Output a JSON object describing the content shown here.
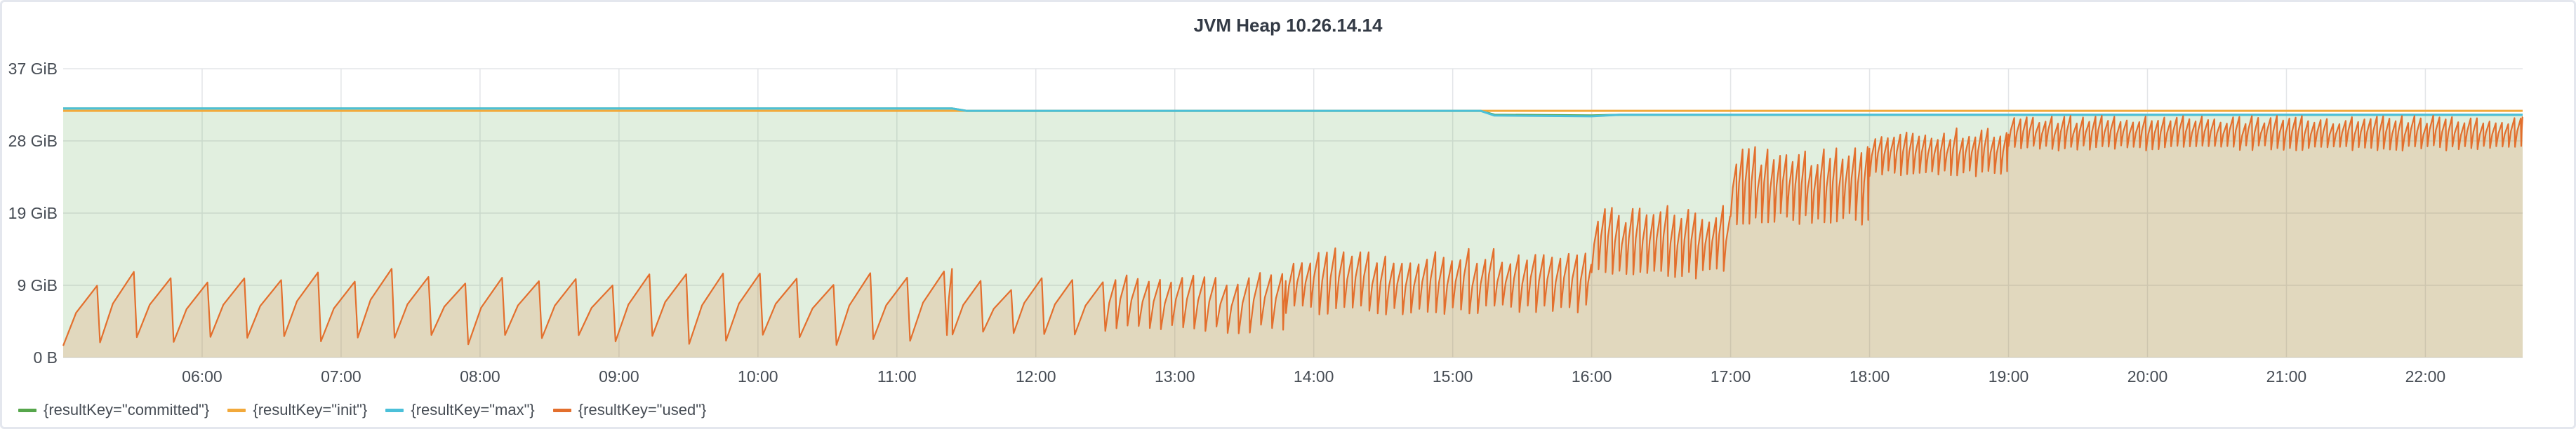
{
  "panel": {
    "title": "JVM Heap 10.26.14.14"
  },
  "chart_data": {
    "type": "line",
    "title": "JVM Heap 10.26.14.14",
    "xlabel": "",
    "ylabel": "",
    "y_unit": "GiB",
    "y_ticks": [
      "0 B",
      "9 GiB",
      "19 GiB",
      "28 GiB",
      "37 GiB"
    ],
    "y_tick_values": [
      0,
      9.25,
      18.5,
      27.75,
      37
    ],
    "ylim": [
      0,
      37
    ],
    "x_ticks": [
      "06:00",
      "07:00",
      "08:00",
      "09:00",
      "10:00",
      "11:00",
      "12:00",
      "13:00",
      "14:00",
      "15:00",
      "16:00",
      "17:00",
      "18:00",
      "19:00",
      "20:00",
      "21:00",
      "22:00"
    ],
    "x_tick_hours": [
      6,
      7,
      8,
      9,
      10,
      11,
      12,
      13,
      14,
      15,
      16,
      17,
      18,
      19,
      20,
      21,
      22
    ],
    "xlim_hours": [
      5.0,
      22.7
    ],
    "grid": true,
    "legend_position": "bottom-left",
    "series": [
      {
        "name": "{resultKey=\"committed\"}",
        "color": "#56a64b",
        "fill": true,
        "points": [
          [
            5.0,
            31.9
          ],
          [
            11.4,
            31.9
          ],
          [
            11.5,
            31.6
          ],
          [
            15.2,
            31.6
          ],
          [
            15.3,
            31.1
          ],
          [
            16.0,
            31.0
          ],
          [
            16.2,
            31.1
          ],
          [
            22.7,
            31.1
          ]
        ]
      },
      {
        "name": "{resultKey=\"init\"}",
        "color": "#f2a93b",
        "fill": false,
        "points": [
          [
            5.0,
            31.6
          ],
          [
            22.7,
            31.6
          ]
        ]
      },
      {
        "name": "{resultKey=\"max\"}",
        "color": "#4bc0d9",
        "fill": false,
        "points": [
          [
            5.0,
            31.9
          ],
          [
            11.4,
            31.9
          ],
          [
            11.5,
            31.6
          ],
          [
            15.2,
            31.6
          ],
          [
            15.3,
            31.0
          ],
          [
            16.0,
            30.9
          ],
          [
            16.2,
            31.1
          ],
          [
            22.7,
            31.1
          ]
        ]
      },
      {
        "name": "{resultKey=\"used\"}",
        "color": "#e36f2d",
        "fill": true,
        "sawtooth": [
          {
            "from": 5.0,
            "to": 11.4,
            "period": 0.265,
            "low": 1.5,
            "high": 11.5
          },
          {
            "from": 11.4,
            "to": 12.5,
            "period": 0.22,
            "low": 2.5,
            "high": 10.5
          },
          {
            "from": 12.5,
            "to": 13.8,
            "period": 0.08,
            "low": 3.0,
            "high": 11.0
          },
          {
            "from": 13.8,
            "to": 16.0,
            "period": 0.06,
            "low": 5.5,
            "high": 14.0
          },
          {
            "from": 16.0,
            "to": 17.0,
            "period": 0.05,
            "low": 10.0,
            "high": 19.5
          },
          {
            "from": 17.0,
            "to": 18.0,
            "period": 0.045,
            "low": 17.0,
            "high": 27.0
          },
          {
            "from": 18.0,
            "to": 19.0,
            "period": 0.045,
            "low": 23.0,
            "high": 29.5
          },
          {
            "from": 19.0,
            "to": 22.7,
            "period": 0.045,
            "low": 26.5,
            "high": 31.0
          }
        ]
      }
    ]
  }
}
